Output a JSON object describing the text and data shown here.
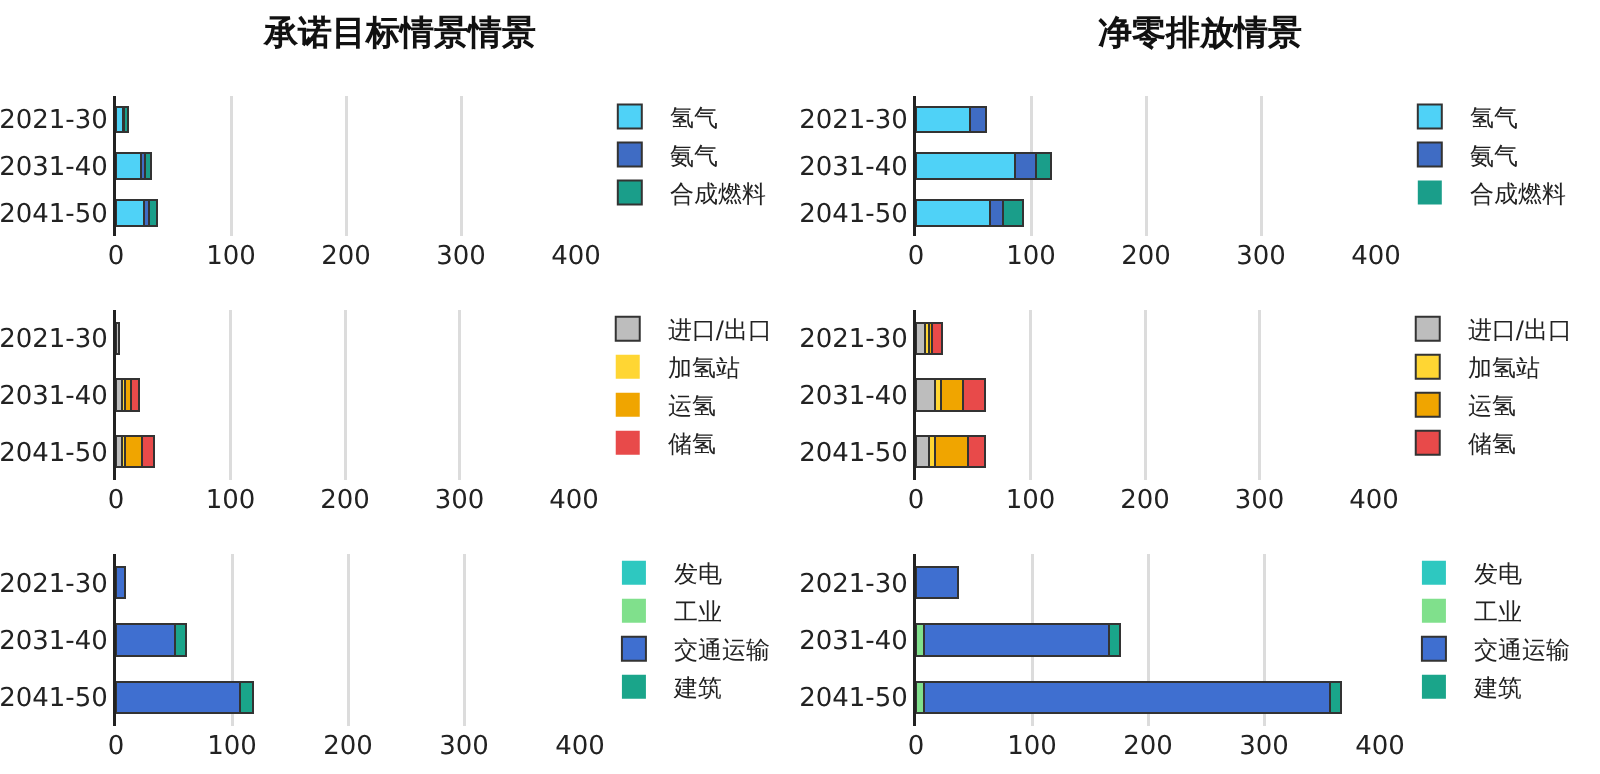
{
  "chart_data": [
    {
      "type": "bar",
      "title": "承诺目标情景情景",
      "orientation": "horizontal",
      "stacked": true,
      "categories": [
        "2021-30",
        "2031-40",
        "2041-50"
      ],
      "xlim": [
        0,
        400
      ],
      "xticks": [
        0,
        100,
        200,
        300,
        400
      ],
      "grid": "x",
      "legend": "right",
      "series": [
        {
          "name": "氢气",
          "color": "#4fd2f7",
          "values": [
            6,
            22,
            24
          ]
        },
        {
          "name": "氨气",
          "color": "#3f6cc4",
          "values": [
            1,
            3,
            5
          ]
        },
        {
          "name": "合成燃料",
          "color": "#1a9e8a",
          "values": [
            3,
            5,
            7
          ]
        }
      ]
    },
    {
      "type": "bar",
      "title": "净零排放情景",
      "orientation": "horizontal",
      "stacked": true,
      "categories": [
        "2021-30",
        "2031-40",
        "2041-50"
      ],
      "xlim": [
        0,
        400
      ],
      "xticks": [
        0,
        100,
        200,
        300,
        400
      ],
      "grid": "x",
      "legend": "right",
      "series": [
        {
          "name": "氢气",
          "color": "#4fd2f7",
          "values": [
            47,
            86,
            64
          ]
        },
        {
          "name": "氨气",
          "color": "#3f6cc4",
          "values": [
            14,
            18,
            12
          ]
        },
        {
          "name": "合成燃料",
          "color": "#1a9e8a",
          "values": [
            0,
            13,
            17
          ]
        }
      ]
    },
    {
      "type": "bar",
      "orientation": "horizontal",
      "stacked": true,
      "categories": [
        "2021-30",
        "2031-40",
        "2041-50"
      ],
      "xlim": [
        0,
        400
      ],
      "xticks": [
        0,
        100,
        200,
        300,
        400
      ],
      "grid": "x",
      "legend": "right",
      "series": [
        {
          "name": "进口/出口",
          "color": "#bdbdbd",
          "values": [
            3,
            5,
            5
          ]
        },
        {
          "name": "加氢站",
          "color": "#ffd633",
          "values": [
            0,
            3,
            3
          ]
        },
        {
          "name": "运氢",
          "color": "#f0a500",
          "values": [
            0,
            5,
            15
          ]
        },
        {
          "name": "储氢",
          "color": "#e84a4a",
          "values": [
            0,
            7,
            10
          ]
        }
      ]
    },
    {
      "type": "bar",
      "orientation": "horizontal",
      "stacked": true,
      "categories": [
        "2021-30",
        "2031-40",
        "2041-50"
      ],
      "xlim": [
        0,
        400
      ],
      "xticks": [
        0,
        100,
        200,
        300,
        400
      ],
      "grid": "x",
      "legend": "right",
      "series": [
        {
          "name": "进口/出口",
          "color": "#bdbdbd",
          "values": [
            8,
            17,
            11
          ]
        },
        {
          "name": "加氢站",
          "color": "#ffd633",
          "values": [
            3,
            5,
            6
          ]
        },
        {
          "name": "运氢",
          "color": "#f0a500",
          "values": [
            3,
            19,
            28
          ]
        },
        {
          "name": "储氢",
          "color": "#e84a4a",
          "values": [
            9,
            19,
            15
          ]
        }
      ]
    },
    {
      "type": "bar",
      "orientation": "horizontal",
      "stacked": true,
      "categories": [
        "2021-30",
        "2031-40",
        "2041-50"
      ],
      "xlim": [
        0,
        400
      ],
      "xticks": [
        0,
        100,
        200,
        300,
        400
      ],
      "grid": "x",
      "legend": "right",
      "series": [
        {
          "name": "发电",
          "color": "#2ec8c0",
          "values": [
            0,
            0,
            0
          ]
        },
        {
          "name": "工业",
          "color": "#80e08c",
          "values": [
            0,
            0,
            0
          ]
        },
        {
          "name": "交通运输",
          "color": "#3f6fd0",
          "values": [
            8,
            51,
            107
          ]
        },
        {
          "name": "建筑",
          "color": "#1aa58a",
          "values": [
            0,
            9,
            11
          ]
        }
      ]
    },
    {
      "type": "bar",
      "orientation": "horizontal",
      "stacked": true,
      "categories": [
        "2021-30",
        "2031-40",
        "2041-50"
      ],
      "xlim": [
        0,
        400
      ],
      "xticks": [
        0,
        100,
        200,
        300,
        400
      ],
      "grid": "x",
      "legend": "right",
      "series": [
        {
          "name": "发电",
          "color": "#2ec8c0",
          "values": [
            0,
            0,
            0
          ]
        },
        {
          "name": "工业",
          "color": "#80e08c",
          "values": [
            0,
            7,
            7
          ]
        },
        {
          "name": "交通运输",
          "color": "#3f6fd0",
          "values": [
            36,
            159,
            350
          ]
        },
        {
          "name": "建筑",
          "color": "#1aa58a",
          "values": [
            0,
            10,
            9
          ]
        }
      ]
    }
  ]
}
